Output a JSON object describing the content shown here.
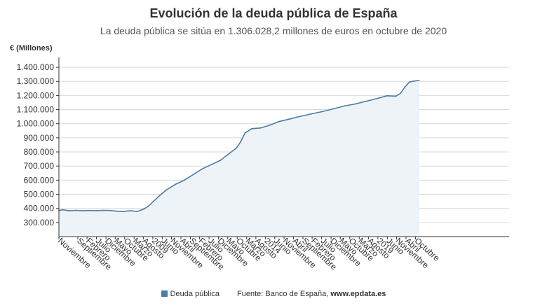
{
  "header": {
    "title": "Evolución de la deuda pública de España",
    "subtitle": "La deuda pública se sitúa en 1.306.028,2 millones de euros en octubre de 2020",
    "unit_label": "€ (Millones)"
  },
  "footer": {
    "legend_label": "Deuda pública",
    "source_label": "Fuente: Banco de España,",
    "source_site": "www.epdata.es"
  },
  "colors": {
    "line": "#4a7ca8",
    "area": "#eef3f8",
    "grid": "#d9d9d9",
    "axis": "#333333"
  },
  "chart_data": {
    "type": "area",
    "title": "Evolución de la deuda pública de España",
    "ylabel": "€ (Millones)",
    "xlabel": "",
    "ylim": [
      200000,
      1450000
    ],
    "yticks": [
      300000,
      400000,
      500000,
      600000,
      700000,
      800000,
      900000,
      1000000,
      1100000,
      1200000,
      1300000,
      1400000
    ],
    "ytick_labels": [
      "300.000",
      "400.000",
      "500.000",
      "600.000",
      "700.000",
      "800.000",
      "900.000",
      "1.000.000",
      "1.100.000",
      "1.200.000",
      "1.300.000",
      "1.400.000"
    ],
    "grid": true,
    "legend": "bottom",
    "x_range": [
      2000.83,
      2020.83
    ],
    "xtick_labels": [
      {
        "t": 2000.83,
        "label": "Noviembre"
      },
      {
        "t": 2001.67,
        "label": "Septiembre"
      },
      {
        "t": 2002.08,
        "label": "Febrero"
      },
      {
        "t": 2002.5,
        "label": "Julio"
      },
      {
        "t": 2002.92,
        "label": "Diciembre"
      },
      {
        "t": 2003.33,
        "label": "Mayo"
      },
      {
        "t": 2003.75,
        "label": "Octubre"
      },
      {
        "t": 2004.17,
        "label": "Marzo"
      },
      {
        "t": 2004.58,
        "label": "Agosto"
      },
      {
        "t": 2005.0,
        "label": "2009"
      },
      {
        "t": 2005.42,
        "label": "Junio"
      },
      {
        "t": 2005.83,
        "label": "Noviembre"
      },
      {
        "t": 2006.25,
        "label": "Abril"
      },
      {
        "t": 2006.67,
        "label": "Septiembre"
      },
      {
        "t": 2007.08,
        "label": "Febrero"
      },
      {
        "t": 2007.5,
        "label": "Julio"
      },
      {
        "t": 2007.92,
        "label": "Diciembre"
      },
      {
        "t": 2008.33,
        "label": "Mayo"
      },
      {
        "t": 2008.75,
        "label": "Octubre"
      },
      {
        "t": 2009.17,
        "label": "Marzo"
      },
      {
        "t": 2009.58,
        "label": "Agosto"
      },
      {
        "t": 2010.0,
        "label": "2014"
      },
      {
        "t": 2010.42,
        "label": "Junio"
      },
      {
        "t": 2010.83,
        "label": "Noviembre"
      },
      {
        "t": 2011.25,
        "label": "Abril"
      },
      {
        "t": 2011.67,
        "label": "Septiembre"
      },
      {
        "t": 2012.08,
        "label": "Febrero"
      },
      {
        "t": 2012.5,
        "label": "Julio"
      },
      {
        "t": 2012.92,
        "label": "Diciembre"
      },
      {
        "t": 2013.33,
        "label": "Mayo"
      },
      {
        "t": 2013.75,
        "label": "Octubre"
      },
      {
        "t": 2014.17,
        "label": "Marzo"
      },
      {
        "t": 2014.58,
        "label": "Agosto"
      },
      {
        "t": 2015.0,
        "label": "2019"
      },
      {
        "t": 2015.42,
        "label": "Junio"
      },
      {
        "t": 2015.83,
        "label": "Noviembre"
      },
      {
        "t": 2016.25,
        "label": "Abril"
      },
      {
        "t": 2016.67,
        "label": "Octubre"
      }
    ],
    "series": [
      {
        "name": "Deuda pública",
        "x": [
          2000.83,
          2001.0,
          2001.3,
          2001.6,
          2001.9,
          2002.2,
          2002.5,
          2002.8,
          2003.1,
          2003.4,
          2003.7,
          2004.0,
          2004.3,
          2004.6,
          2004.8,
          2005.0,
          2005.3,
          2005.6,
          2006.0,
          2006.4,
          2006.8,
          2007.2,
          2007.6,
          2008.0,
          2008.4,
          2008.7,
          2008.9,
          2009.1,
          2009.4,
          2009.8,
          2010.2,
          2010.6,
          2011.0,
          2011.5,
          2012.0,
          2012.5,
          2013.0,
          2013.5,
          2014.0,
          2014.5,
          2015.0,
          2015.4,
          2015.8,
          2016.0,
          2016.2,
          2016.4,
          2016.6,
          2016.83
        ],
        "values": [
          385000,
          390000,
          383000,
          386000,
          383000,
          385000,
          384000,
          386000,
          385000,
          380000,
          378000,
          383000,
          378000,
          395000,
          415000,
          445000,
          490000,
          530000,
          570000,
          600000,
          640000,
          680000,
          710000,
          740000,
          790000,
          825000,
          870000,
          935000,
          965000,
          970000,
          990000,
          1015000,
          1030000,
          1050000,
          1068000,
          1085000,
          1105000,
          1125000,
          1140000,
          1160000,
          1180000,
          1198000,
          1195000,
          1215000,
          1260000,
          1295000,
          1302000,
          1306028
        ]
      }
    ]
  }
}
